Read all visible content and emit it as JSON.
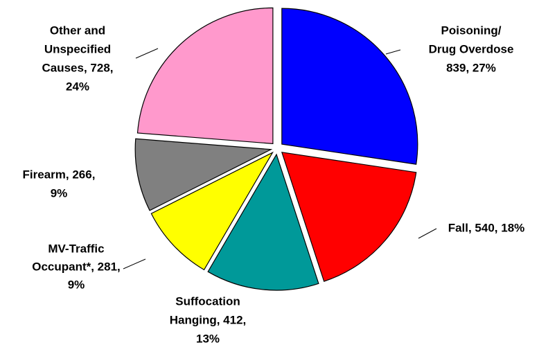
{
  "chart_data": {
    "type": "pie",
    "labels": [
      [
        "Poisoning/",
        "Drug Overdose",
        "839, 27%"
      ],
      [
        "Fall, 540, 18%"
      ],
      [
        "Suffocation",
        "Hanging, 412,",
        "13%"
      ],
      [
        "MV-Traffic",
        "Occupant*, 281,",
        "9%"
      ],
      [
        "Firearm, 266,",
        "9%"
      ],
      [
        "Other and",
        "Unspecified",
        "Causes, 728,",
        "24%"
      ]
    ],
    "values": [
      839,
      540,
      412,
      281,
      266,
      728
    ],
    "percents": [
      27,
      18,
      13,
      9,
      9,
      24
    ],
    "colors": [
      "#0000ff",
      "#ff0000",
      "#009999",
      "#ffff00",
      "#808080",
      "#ff99cc"
    ]
  }
}
